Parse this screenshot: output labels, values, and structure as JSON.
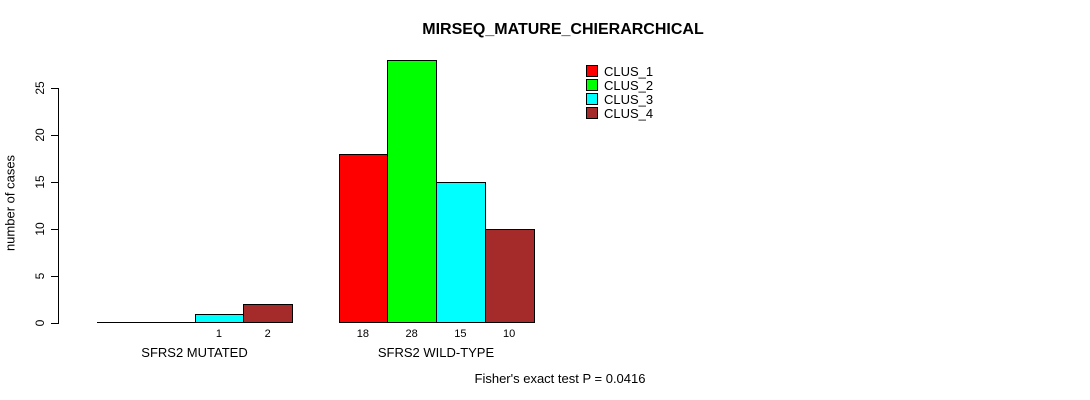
{
  "chart_data": {
    "type": "bar",
    "title": "MIRSEQ_MATURE_CHIERARCHICAL",
    "xlabel": "",
    "ylabel": "number of cases",
    "ylim": [
      0,
      28
    ],
    "yticks": [
      0,
      5,
      10,
      15,
      20,
      25
    ],
    "grid": false,
    "legend_position": "top-right",
    "categories": [
      "SFRS2 MUTATED",
      "SFRS2 WILD-TYPE"
    ],
    "series": [
      {
        "name": "CLUS_1",
        "color": "#FF0000",
        "values": [
          0,
          18
        ]
      },
      {
        "name": "CLUS_2",
        "color": "#00FF00",
        "values": [
          0,
          28
        ]
      },
      {
        "name": "CLUS_3",
        "color": "#00FFFF",
        "values": [
          1,
          15
        ]
      },
      {
        "name": "CLUS_4",
        "color": "#A52A2A",
        "values": [
          2,
          10
        ]
      }
    ],
    "bar_value_labels": true,
    "annotation": "Fisher's exact test P = 0.0416"
  }
}
